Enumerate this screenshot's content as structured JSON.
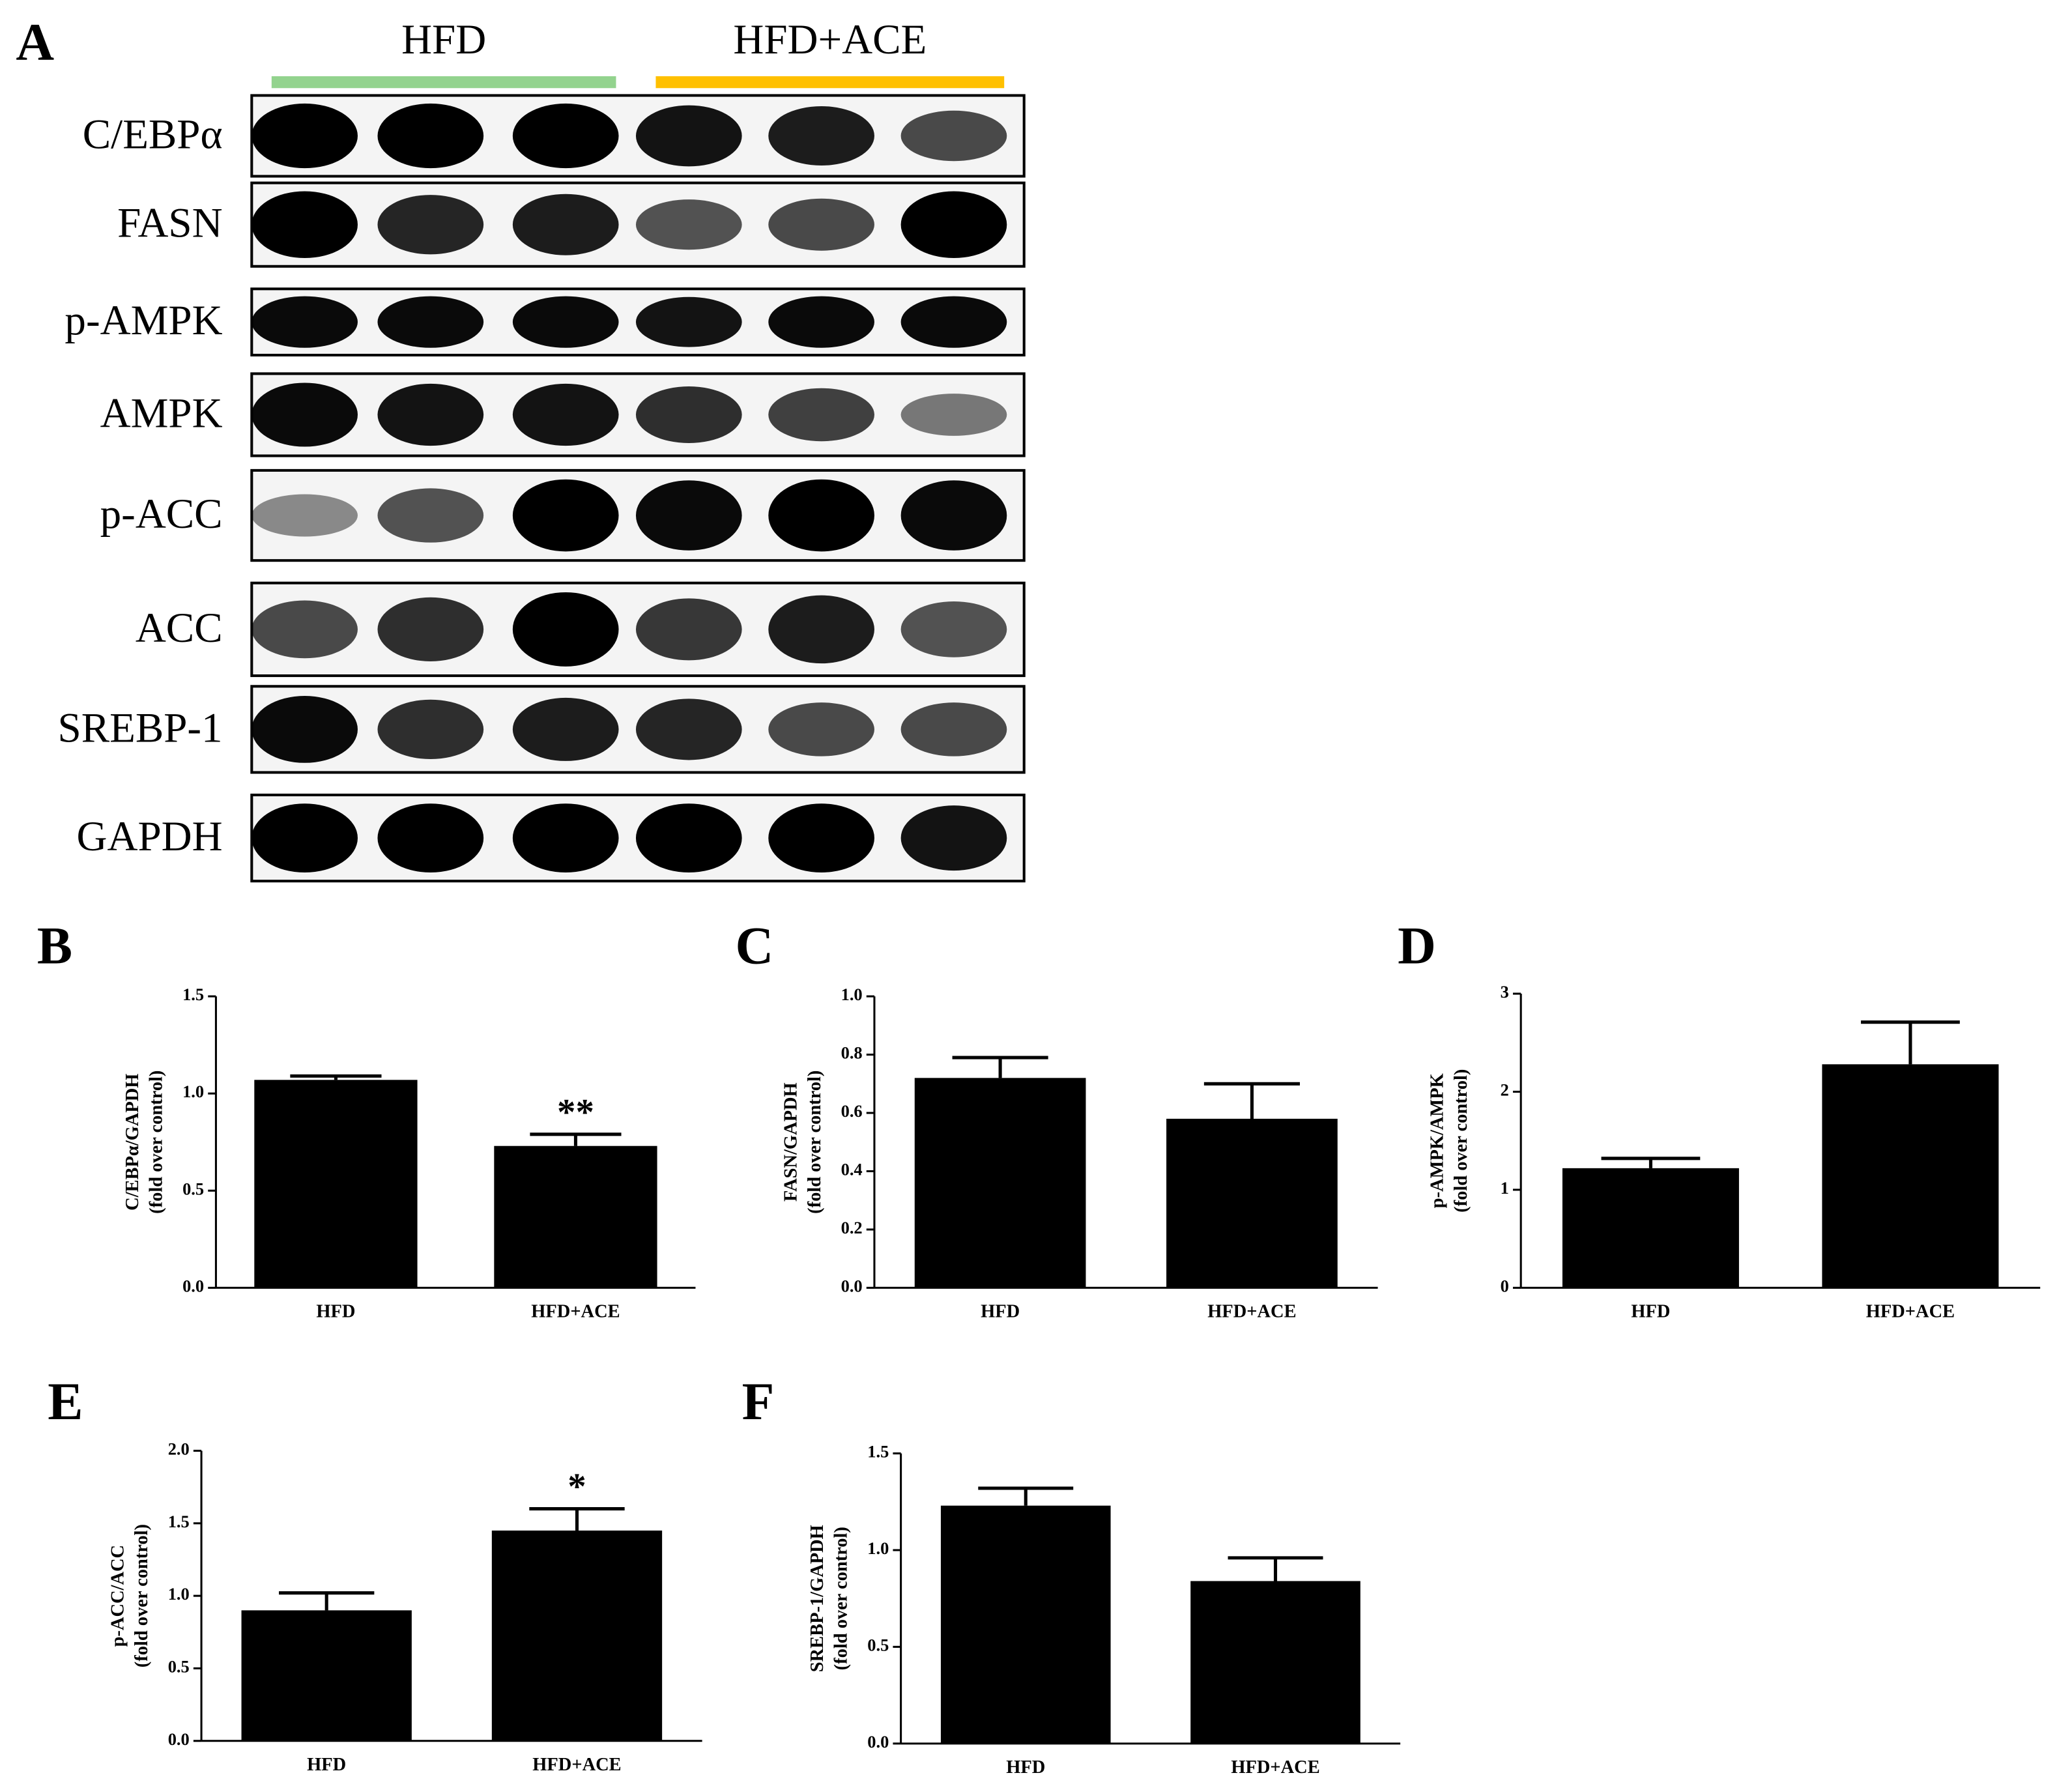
{
  "blot": {
    "panel_label": "A",
    "groups": [
      {
        "name": "HFD",
        "color": "#93d38e"
      },
      {
        "name": "HFD+ACE",
        "color": "#ffc000"
      }
    ],
    "proteins": [
      "C/EBPα",
      "FASN",
      "p-AMPK",
      "AMPK",
      "p-ACC",
      "ACC",
      "SREBP-1",
      "GAPDH"
    ]
  },
  "chart_data": [
    {
      "type": "bar",
      "panel_label": "B",
      "ylabel": [
        "C/EBPα/GAPDH",
        "(fold over control)"
      ],
      "categories": [
        "HFD",
        "HFD+ACE"
      ],
      "values": [
        1.07,
        0.73
      ],
      "errors": [
        0.02,
        0.06
      ],
      "annotations": [
        null,
        "**"
      ],
      "color": "#000000",
      "ylim": [
        0,
        1.5
      ],
      "yticks": [
        {
          "value": 0,
          "label": "0.0"
        },
        {
          "value": 0.5,
          "label": "0.5"
        },
        {
          "value": 1,
          "label": "1.0"
        },
        {
          "value": 1.5,
          "label": "1.5"
        }
      ]
    },
    {
      "type": "bar",
      "panel_label": "C",
      "ylabel": [
        "FASN/GAPDH",
        "(fold over control)"
      ],
      "categories": [
        "HFD",
        "HFD+ACE"
      ],
      "values": [
        0.72,
        0.58
      ],
      "errors": [
        0.07,
        0.12
      ],
      "annotations": [
        null,
        null
      ],
      "color": "#000000",
      "ylim": [
        0,
        1
      ],
      "yticks": [
        {
          "value": 0,
          "label": "0.0"
        },
        0.2,
        0.4,
        0.6,
        0.8,
        {
          "value": 1,
          "label": "1.0"
        }
      ]
    },
    {
      "type": "bar",
      "panel_label": "D",
      "ylabel": [
        "p-AMPK/AMPK",
        "(fold over control)"
      ],
      "categories": [
        "HFD",
        "HFD+ACE"
      ],
      "values": [
        1.22,
        2.28
      ],
      "errors": [
        0.1,
        0.43
      ],
      "annotations": [
        null,
        null
      ],
      "color": "#000000",
      "ylim": [
        0,
        3
      ],
      "yticks": [
        0,
        1,
        2,
        3
      ]
    },
    {
      "type": "bar",
      "panel_label": "E",
      "ylabel": [
        "p-ACC/ACC",
        "(fold over control)"
      ],
      "categories": [
        "HFD",
        "HFD+ACE"
      ],
      "values": [
        0.9,
        1.45
      ],
      "errors": [
        0.12,
        0.15
      ],
      "annotations": [
        null,
        "*"
      ],
      "color": "#000000",
      "ylim": [
        0,
        2
      ],
      "yticks": [
        {
          "value": 0,
          "label": "0.0"
        },
        0.5,
        {
          "value": 1,
          "label": "1.0"
        },
        1.5,
        {
          "value": 2,
          "label": "2.0"
        }
      ]
    },
    {
      "type": "bar",
      "panel_label": "F",
      "ylabel": [
        "SREBP-1/GAPDH",
        "(fold over control)"
      ],
      "categories": [
        "HFD",
        "HFD+ACE"
      ],
      "values": [
        1.23,
        0.84
      ],
      "errors": [
        0.09,
        0.12
      ],
      "annotations": [
        null,
        null
      ],
      "color": "#000000",
      "ylim": [
        0,
        1.5
      ],
      "yticks": [
        {
          "value": 0,
          "label": "0.0"
        },
        0.5,
        {
          "value": 1,
          "label": "1.0"
        },
        1.5
      ]
    }
  ]
}
